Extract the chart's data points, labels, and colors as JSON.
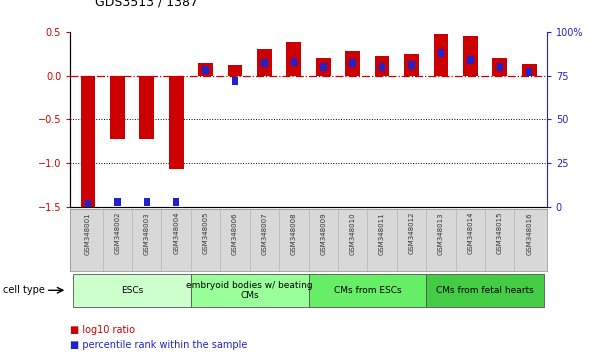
{
  "title": "GDS3513 / 1387",
  "samples": [
    "GSM348001",
    "GSM348002",
    "GSM348003",
    "GSM348004",
    "GSM348005",
    "GSM348006",
    "GSM348007",
    "GSM348008",
    "GSM348009",
    "GSM348010",
    "GSM348011",
    "GSM348012",
    "GSM348013",
    "GSM348014",
    "GSM348015",
    "GSM348016"
  ],
  "log10_ratio": [
    -1.5,
    -0.72,
    -0.72,
    -1.07,
    0.15,
    0.12,
    0.3,
    0.38,
    0.2,
    0.28,
    0.22,
    0.25,
    0.47,
    0.45,
    0.2,
    0.13
  ],
  "percentile_rank": [
    2,
    3,
    3,
    3,
    78,
    72,
    82,
    83,
    80,
    82,
    80,
    81,
    88,
    84,
    80,
    77
  ],
  "ylim_left": [
    -1.5,
    0.5
  ],
  "ylim_right": [
    0,
    100
  ],
  "bar_color_red": "#cc0000",
  "bar_color_blue": "#2222cc",
  "dash_color": "#cc0000",
  "grid_color": "#000000",
  "bg_color": "#ffffff",
  "cell_type_groups": [
    {
      "label": "ESCs",
      "start": 0,
      "end": 3,
      "color": "#ccffcc"
    },
    {
      "label": "embryoid bodies w/ beating\nCMs",
      "start": 4,
      "end": 7,
      "color": "#99ff99"
    },
    {
      "label": "CMs from ESCs",
      "start": 8,
      "end": 11,
      "color": "#66ee66"
    },
    {
      "label": "CMs from fetal hearts",
      "start": 12,
      "end": 15,
      "color": "#44cc44"
    }
  ],
  "legend_labels": [
    "log10 ratio",
    "percentile rank within the sample"
  ],
  "cell_type_label": "cell type",
  "title_fontsize": 9,
  "tick_fontsize": 7,
  "sample_fontsize": 5.0,
  "cell_type_fontsize": 6.5,
  "legend_fontsize": 7
}
